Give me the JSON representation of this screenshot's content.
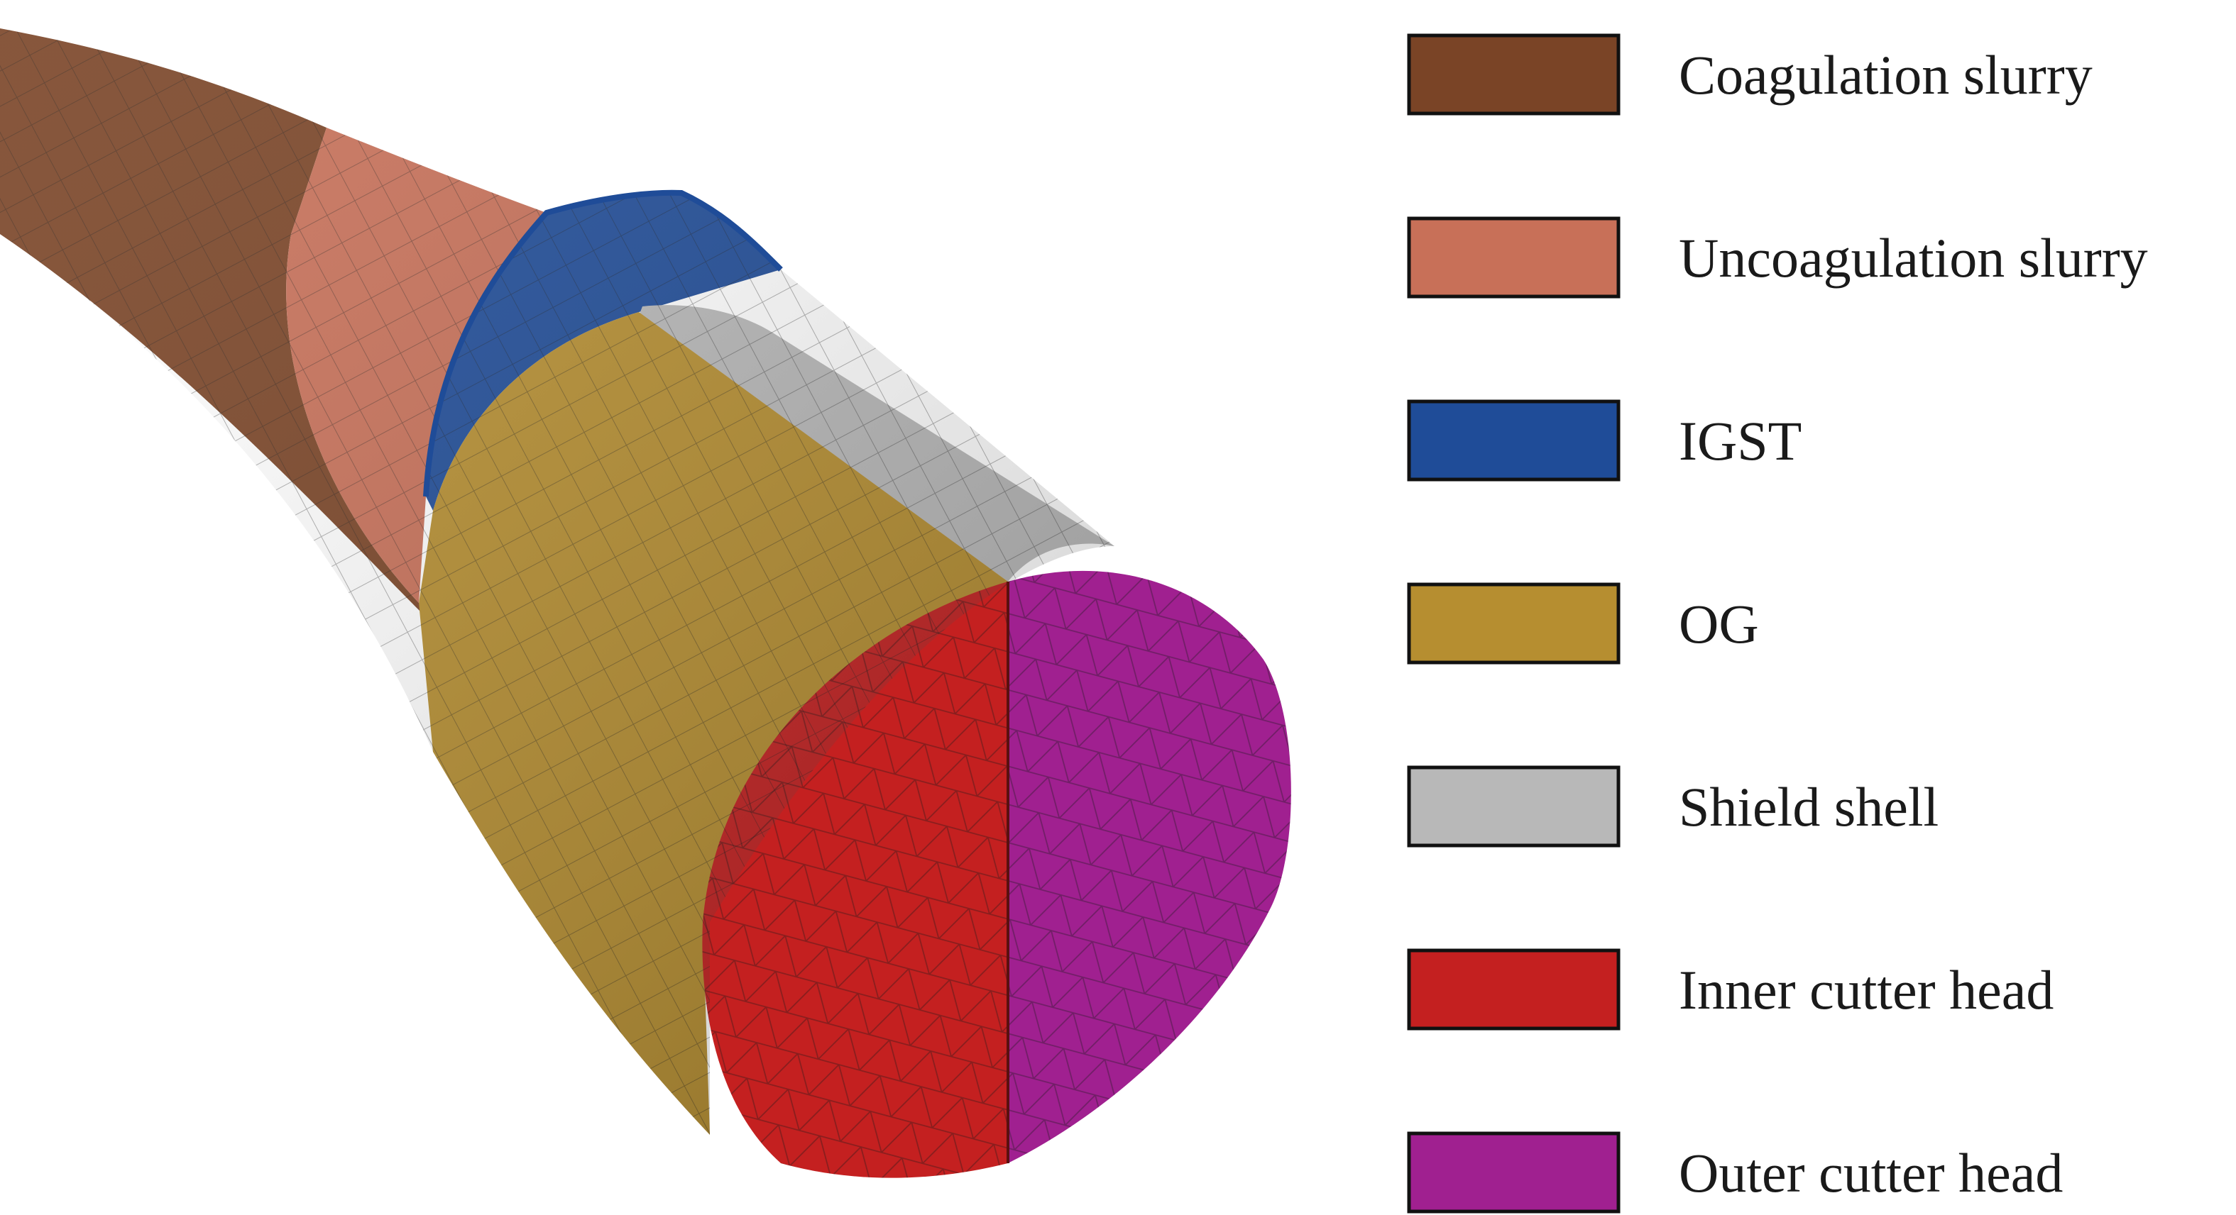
{
  "legend": {
    "items": [
      {
        "label": "Coagulation slurry",
        "color": "#7a4426"
      },
      {
        "label": "Uncoagulation slurry",
        "color": "#c87058"
      },
      {
        "label": "IGST",
        "color": "#1f4c98"
      },
      {
        "label": "OG",
        "color": "#b68e30"
      },
      {
        "label": "Shield shell",
        "color": "#b8b8b8"
      },
      {
        "label": "Inner cutter head",
        "color": "#c42020"
      },
      {
        "label": "Outer cutter head",
        "color": "#a02090"
      }
    ]
  },
  "model": {
    "colors": {
      "coagulation_slurry": "#7a4426",
      "uncoagulation_slurry": "#c87058",
      "igst": "#1f4c98",
      "og": "#b68e30",
      "shield_shell": "#b8b8b8",
      "inner_cutter_head": "#c42020",
      "outer_cutter_head": "#a02090",
      "mesh_line": "#1b1b1b"
    }
  }
}
